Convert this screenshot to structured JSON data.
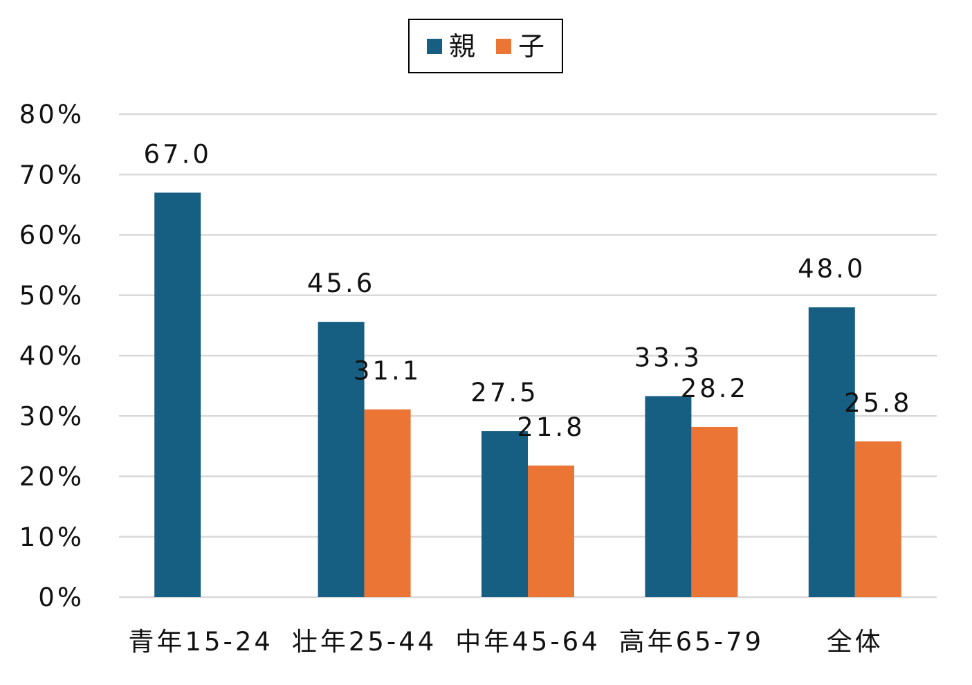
{
  "chart_data": {
    "type": "bar",
    "title": "",
    "xlabel": "",
    "ylabel": "",
    "categories": [
      "青年15-24",
      "壮年25-44",
      "中年45-64",
      "高年65-79",
      "全体"
    ],
    "series": [
      {
        "name": "親",
        "color": "#175f82",
        "values": [
          67.0,
          45.6,
          27.5,
          33.3,
          48.0
        ]
      },
      {
        "name": "子",
        "color": "#ea7535",
        "values": [
          null,
          31.1,
          21.8,
          28.2,
          25.8
        ]
      }
    ],
    "data_labels": [
      [
        "67.0",
        "45.6",
        "27.5",
        "33.3",
        "48.0"
      ],
      [
        "",
        "31.1",
        "21.8",
        "28.2",
        "25.8"
      ]
    ],
    "ylim": [
      0,
      80
    ],
    "yticks": [
      0,
      10,
      20,
      30,
      40,
      50,
      60,
      70,
      80
    ],
    "ytick_labels": [
      "0%",
      "10%",
      "20%",
      "30%",
      "40%",
      "50%",
      "60%",
      "70%",
      "80%"
    ],
    "grid": true,
    "grid_color": "#d9d9d9",
    "legend_position": "top-center"
  }
}
